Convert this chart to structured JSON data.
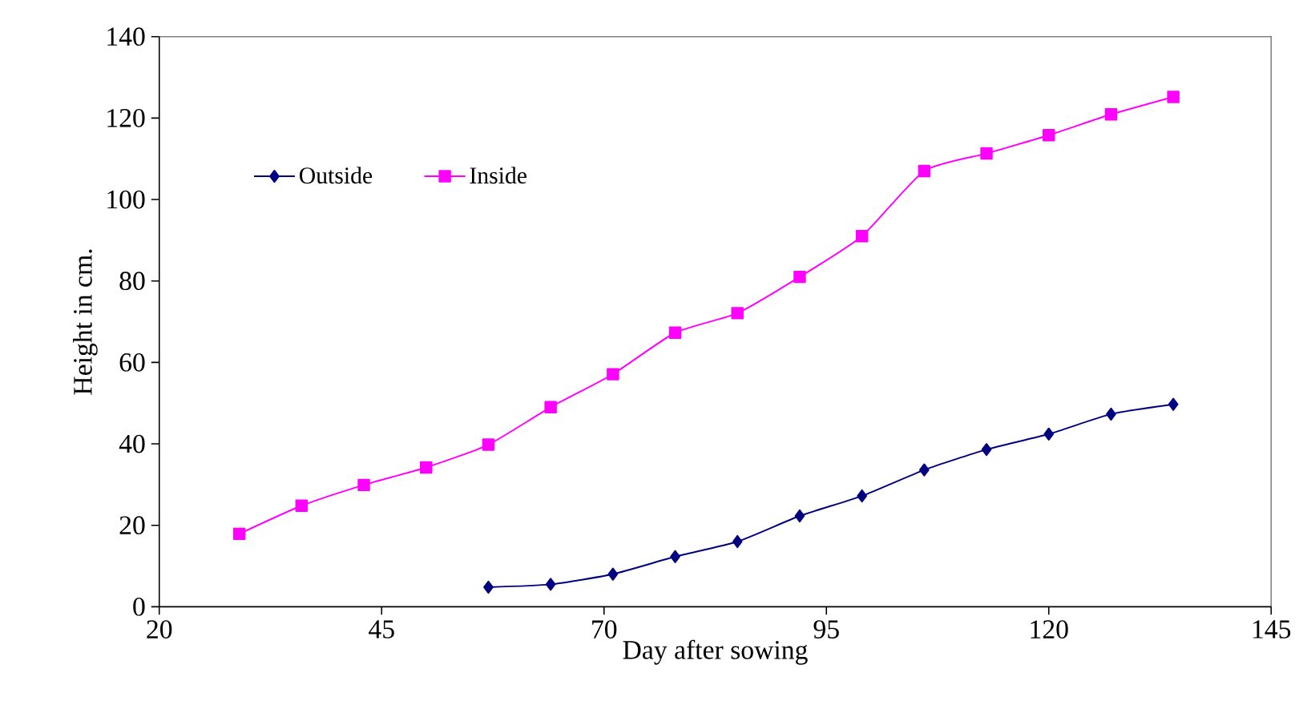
{
  "chart_data": {
    "type": "line",
    "xlabel": "Day after sowing",
    "ylabel": "Height in cm.",
    "xlim": [
      20,
      145
    ],
    "xticks": [
      20,
      45,
      70,
      95,
      120,
      145
    ],
    "ylim": [
      0,
      140
    ],
    "yticks": [
      0,
      20,
      40,
      60,
      80,
      100,
      120,
      140
    ],
    "grid": false,
    "legend": "top left",
    "line_style": "solid",
    "series": [
      {
        "name": "Outside",
        "color": "#000080",
        "marker": "diamond",
        "x": [
          57,
          64,
          71,
          78,
          85,
          92,
          99,
          106,
          113,
          120,
          127,
          134
        ],
        "values": [
          4.8,
          5.5,
          8.0,
          12.3,
          16.0,
          22.3,
          27.2,
          33.6,
          38.6,
          42.4,
          47.3,
          49.7
        ]
      },
      {
        "name": "Inside",
        "color": "#ff00ff",
        "marker": "square",
        "x": [
          29,
          36,
          43,
          50,
          57,
          64,
          71,
          78,
          85,
          92,
          99,
          106,
          113,
          120,
          127,
          134
        ],
        "values": [
          17.9,
          24.8,
          29.9,
          34.2,
          39.8,
          49.0,
          57.1,
          67.3,
          72.1,
          81.0,
          91.0,
          107.0,
          111.3,
          115.8,
          120.9,
          125.2
        ]
      }
    ]
  }
}
